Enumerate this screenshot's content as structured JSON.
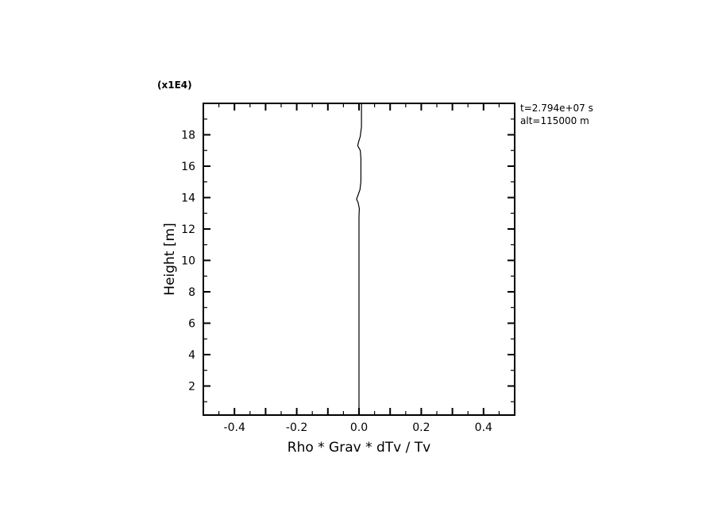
{
  "chart_data": {
    "type": "line",
    "title": "",
    "xlabel": "Rho * Grav * dTv / Tv",
    "ylabel": "Height [m]",
    "y_multiplier_label": "(x1E4)",
    "annotations": [
      "t=2.794e+07 s",
      "alt=115000 m"
    ],
    "xlim": [
      -0.5,
      0.5
    ],
    "ylim": [
      0.15,
      20
    ],
    "xticks": [
      -0.4,
      -0.2,
      0.0,
      0.2,
      0.4
    ],
    "xtick_labels": [
      "-0.4",
      "-0.2",
      "0.0",
      "0.2",
      "0.4"
    ],
    "yticks": [
      2,
      4,
      6,
      8,
      10,
      12,
      14,
      16,
      18
    ],
    "ytick_labels": [
      "2",
      "4",
      "6",
      "8",
      "10",
      "12",
      "14",
      "16",
      "18"
    ],
    "grid": false,
    "line_color": "#000000",
    "series": [
      {
        "x": [
          0.0,
          0.0,
          0.0,
          0.001,
          -0.003,
          -0.008,
          -0.004,
          0.003,
          0.006,
          0.006,
          0.004,
          -0.004,
          -0.002,
          0.004,
          0.008,
          0.008
        ],
        "y": [
          0.15,
          6,
          12.8,
          13.3,
          13.7,
          13.9,
          14.1,
          14.5,
          15.0,
          16.5,
          17.0,
          17.3,
          17.5,
          17.9,
          18.5,
          20
        ]
      }
    ]
  }
}
